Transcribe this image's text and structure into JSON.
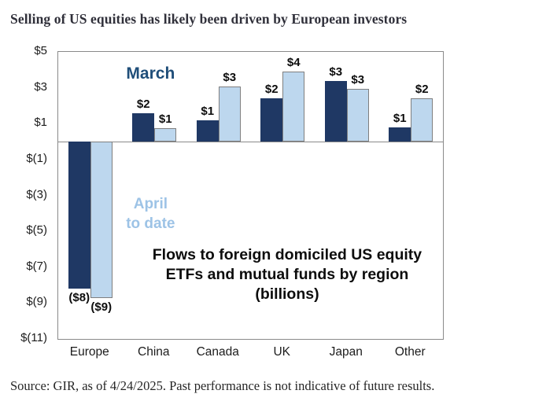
{
  "page": {
    "title": "Selling of US equities has likely been driven by European investors",
    "source": "Source: GIR, as of 4/24/2025. Past performance is not indicative of future results."
  },
  "chart_data": {
    "type": "bar",
    "title": "Selling of US equities has likely been driven by European investors",
    "subtitle_annotation_lines": [
      "Flows to foreign domiciled US equity",
      "ETFs and mutual funds by region",
      "(billions)"
    ],
    "categories": [
      "Europe",
      "China",
      "Canada",
      "UK",
      "Japan",
      "Other"
    ],
    "series": [
      {
        "name": "March",
        "color": "#1f3864",
        "values": [
          -8.2,
          1.6,
          1.2,
          2.4,
          3.4,
          0.8
        ],
        "labels": [
          "($8)",
          "$2",
          "$1",
          "$2",
          "$3",
          "$1"
        ]
      },
      {
        "name": "April to date",
        "color": "#bdd7ee",
        "values": [
          -8.7,
          0.75,
          3.05,
          3.9,
          2.95,
          2.4
        ],
        "labels": [
          "($9)",
          "$1",
          "$3",
          "$4",
          "$3",
          "$2"
        ]
      }
    ],
    "xlabel": "",
    "ylabel": "",
    "ylim": [
      -11,
      5
    ],
    "grid": false,
    "legend_position": "inside-plot-text-labels",
    "yticks": [
      {
        "v": 5,
        "label": "$5"
      },
      {
        "v": 3,
        "label": "$3"
      },
      {
        "v": 1,
        "label": "$1"
      },
      {
        "v": -1,
        "label": "$(1)"
      },
      {
        "v": -3,
        "label": "$(3)"
      },
      {
        "v": -5,
        "label": "$(5)"
      },
      {
        "v": -7,
        "label": "$(7)"
      },
      {
        "v": -9,
        "label": "$(9)"
      },
      {
        "v": -11,
        "label": "$(11)"
      }
    ],
    "legend": {
      "march": {
        "label": "March",
        "color": "#1f4e79"
      },
      "april": {
        "lines": [
          "April",
          "to date"
        ],
        "color": "#9dc3e6"
      }
    }
  }
}
